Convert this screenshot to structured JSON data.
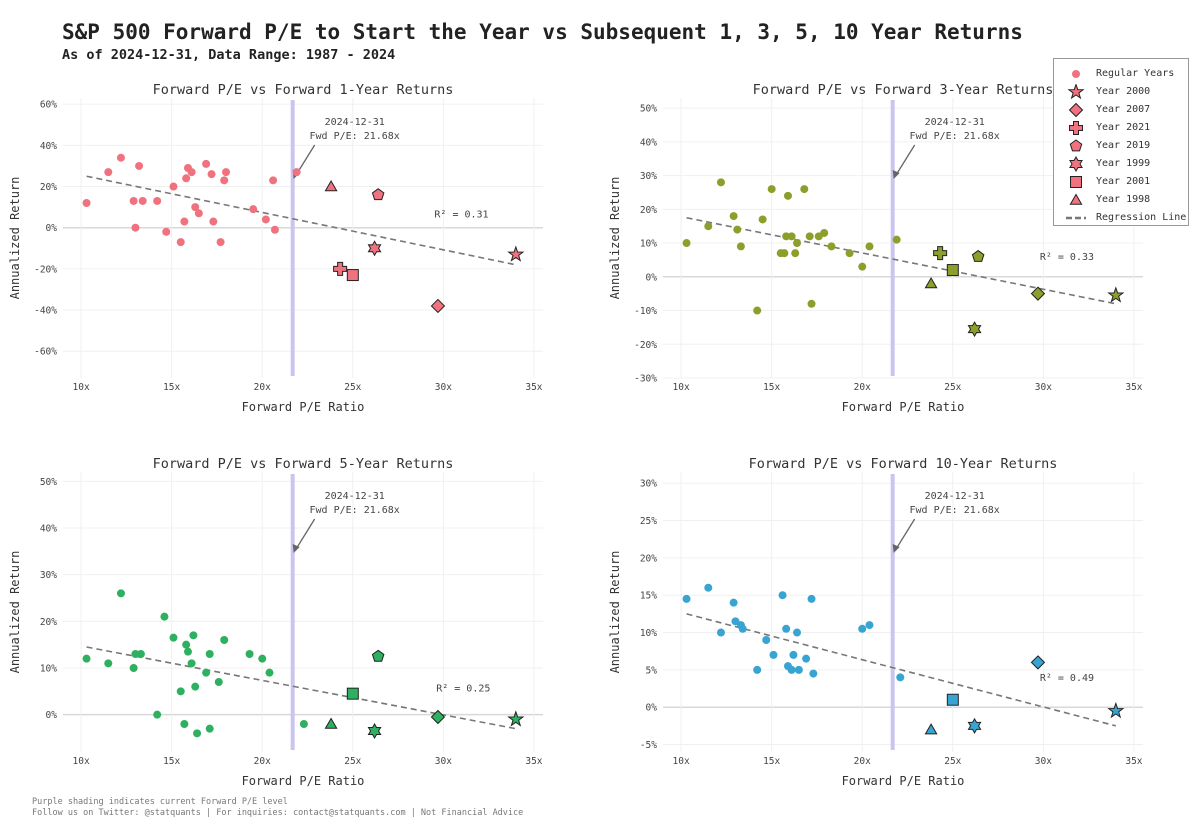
{
  "title": "S&P 500 Forward P/E to Start the Year vs Subsequent 1, 3, 5, 10 Year Returns",
  "subtitle": "As of 2024-12-31, Data Range: 1987 - 2024",
  "footer": {
    "line1": "Purple shading indicates current Forward P/E level",
    "line2": "Follow us on Twitter: @statquants | For inquiries: contact@statquants.com | Not Financial Advice"
  },
  "colors": {
    "regression": "#777777",
    "current_pe_line": "#c9c6ee",
    "zero_line": "#d8d8d8",
    "grid": "#f0f0f0"
  },
  "legend": {
    "items": [
      {
        "label": "Regular Years",
        "marker": "circle"
      },
      {
        "label": "Year 2000",
        "marker": "star"
      },
      {
        "label": "Year 2007",
        "marker": "diamond"
      },
      {
        "label": "Year 2021",
        "marker": "plus"
      },
      {
        "label": "Year 2019",
        "marker": "pentagon"
      },
      {
        "label": "Year 1999",
        "marker": "hexagram"
      },
      {
        "label": "Year 2001",
        "marker": "square"
      },
      {
        "label": "Year 1998",
        "marker": "triangle"
      },
      {
        "label": "Regression Line",
        "marker": "dash"
      }
    ]
  },
  "chart_data": [
    {
      "type": "scatter",
      "title": "Forward P/E vs Forward 1-Year Returns",
      "xlabel": "Forward P/E Ratio",
      "ylabel": "Annualized Return",
      "color": "#f0727f",
      "xlim": [
        9,
        35.5
      ],
      "ylim": [
        -73,
        63
      ],
      "xticks": [
        10,
        15,
        20,
        25,
        30,
        35
      ],
      "xtick_labels": [
        "10x",
        "15x",
        "20x",
        "25x",
        "30x",
        "35x"
      ],
      "yticks": [
        -60,
        -40,
        -20,
        0,
        20,
        40,
        60
      ],
      "ytick_labels": [
        "-60%",
        "-40%",
        "-20%",
        "0%",
        "20%",
        "40%",
        "60%"
      ],
      "current_pe": 21.68,
      "annotation": [
        "2024-12-31",
        "Fwd P/E: 21.68x"
      ],
      "r2_label": "R² = 0.31",
      "r2_at": [
        31,
        5
      ],
      "regression": {
        "x": [
          10.3,
          34
        ],
        "y": [
          25,
          -18
        ]
      },
      "regular_points": [
        [
          10.3,
          12
        ],
        [
          11.5,
          27
        ],
        [
          12.2,
          34
        ],
        [
          12.9,
          13
        ],
        [
          13,
          0
        ],
        [
          13.2,
          30
        ],
        [
          13.4,
          13
        ],
        [
          14.2,
          13
        ],
        [
          14.7,
          -2
        ],
        [
          15.1,
          20
        ],
        [
          15.5,
          -7
        ],
        [
          15.7,
          3
        ],
        [
          15.8,
          24
        ],
        [
          15.9,
          29
        ],
        [
          16.1,
          27
        ],
        [
          16.3,
          10
        ],
        [
          16.5,
          7
        ],
        [
          16.9,
          31
        ],
        [
          17.2,
          26
        ],
        [
          17.3,
          3
        ],
        [
          17.7,
          -7
        ],
        [
          17.9,
          23
        ],
        [
          18,
          27
        ],
        [
          19.5,
          9
        ],
        [
          20.2,
          4
        ],
        [
          20.6,
          23
        ],
        [
          20.7,
          -1
        ],
        [
          21.9,
          27
        ]
      ],
      "special_points": [
        {
          "year": "2000",
          "marker": "star",
          "x": 34,
          "y": -13
        },
        {
          "year": "2007",
          "marker": "diamond",
          "x": 29.7,
          "y": -38
        },
        {
          "year": "2021",
          "marker": "plus",
          "x": 24.3,
          "y": -20
        },
        {
          "year": "2019",
          "marker": "pentagon",
          "x": 26.4,
          "y": 16
        },
        {
          "year": "1999",
          "marker": "hexagram",
          "x": 26.2,
          "y": -10
        },
        {
          "year": "2001",
          "marker": "square",
          "x": 25,
          "y": -23
        },
        {
          "year": "1998",
          "marker": "triangle",
          "x": 23.8,
          "y": 20
        }
      ]
    },
    {
      "type": "scatter",
      "title": "Forward P/E vs Forward 3-Year Returns",
      "xlabel": "Forward P/E Ratio",
      "ylabel": "Annualized Return",
      "color": "#8e9e2b",
      "xlim": [
        9,
        35.5
      ],
      "ylim": [
        -30,
        53
      ],
      "xticks": [
        10,
        15,
        20,
        25,
        30,
        35
      ],
      "xtick_labels": [
        "10x",
        "15x",
        "20x",
        "25x",
        "30x",
        "35x"
      ],
      "yticks": [
        -30,
        -20,
        -10,
        0,
        10,
        20,
        30,
        40,
        50
      ],
      "ytick_labels": [
        "-30%",
        "-20%",
        "-10%",
        "0%",
        "10%",
        "20%",
        "30%",
        "40%",
        "50%"
      ],
      "current_pe": 21.68,
      "annotation": [
        "2024-12-31",
        "Fwd P/E: 21.68x"
      ],
      "r2_label": "R² = 0.33",
      "r2_at": [
        31.3,
        5
      ],
      "regression": {
        "x": [
          10.3,
          34
        ],
        "y": [
          17.5,
          -8
        ]
      },
      "regular_points": [
        [
          10.3,
          10
        ],
        [
          11.5,
          15
        ],
        [
          12.2,
          28
        ],
        [
          12.9,
          18
        ],
        [
          13.1,
          14
        ],
        [
          13.3,
          9
        ],
        [
          14.2,
          -10
        ],
        [
          14.5,
          17
        ],
        [
          15,
          26
        ],
        [
          15.5,
          7
        ],
        [
          15.7,
          7
        ],
        [
          15.8,
          12
        ],
        [
          15.9,
          24
        ],
        [
          16.1,
          12
        ],
        [
          16.3,
          7
        ],
        [
          16.4,
          10
        ],
        [
          16.8,
          26
        ],
        [
          17.1,
          12
        ],
        [
          17.2,
          -8
        ],
        [
          17.6,
          12
        ],
        [
          17.9,
          13
        ],
        [
          18.3,
          9
        ],
        [
          19.3,
          7
        ],
        [
          20,
          3
        ],
        [
          20.4,
          9
        ],
        [
          21.9,
          11
        ]
      ],
      "special_points": [
        {
          "year": "2000",
          "marker": "star",
          "x": 34,
          "y": -5.5
        },
        {
          "year": "2007",
          "marker": "diamond",
          "x": 29.7,
          "y": -5
        },
        {
          "year": "2021",
          "marker": "plus",
          "x": 24.3,
          "y": 7
        },
        {
          "year": "2019",
          "marker": "pentagon",
          "x": 26.4,
          "y": 6
        },
        {
          "year": "1999",
          "marker": "hexagram",
          "x": 26.2,
          "y": -15.5
        },
        {
          "year": "2001",
          "marker": "square",
          "x": 25,
          "y": 2
        },
        {
          "year": "1998",
          "marker": "triangle",
          "x": 23.8,
          "y": -2
        }
      ]
    },
    {
      "type": "scatter",
      "title": "Forward P/E vs Forward 5-Year Returns",
      "xlabel": "Forward P/E Ratio",
      "ylabel": "Annualized Return",
      "color": "#2eb061",
      "xlim": [
        9,
        35.5
      ],
      "ylim": [
        -8,
        52
      ],
      "xticks": [
        10,
        15,
        20,
        25,
        30,
        35
      ],
      "xtick_labels": [
        "10x",
        "15x",
        "20x",
        "25x",
        "30x",
        "35x"
      ],
      "yticks": [
        0,
        10,
        20,
        30,
        40,
        50
      ],
      "ytick_labels": [
        "0%",
        "10%",
        "20%",
        "30%",
        "40%",
        "50%"
      ],
      "current_pe": 21.68,
      "annotation": [
        "2024-12-31",
        "Fwd P/E: 21.68x"
      ],
      "r2_label": "R² = 0.25",
      "r2_at": [
        31.1,
        5
      ],
      "regression": {
        "x": [
          10.3,
          34
        ],
        "y": [
          14.5,
          -3
        ]
      },
      "regular_points": [
        [
          10.3,
          12
        ],
        [
          11.5,
          11
        ],
        [
          12.2,
          26
        ],
        [
          12.9,
          10
        ],
        [
          13,
          13
        ],
        [
          13.3,
          13
        ],
        [
          14.2,
          0
        ],
        [
          14.6,
          21
        ],
        [
          15.1,
          16.5
        ],
        [
          15.5,
          5
        ],
        [
          15.7,
          -2
        ],
        [
          15.8,
          15
        ],
        [
          15.9,
          13.5
        ],
        [
          16.1,
          11
        ],
        [
          16.2,
          17
        ],
        [
          16.3,
          6
        ],
        [
          16.4,
          -4
        ],
        [
          16.9,
          9
        ],
        [
          17.1,
          -3
        ],
        [
          17.1,
          13
        ],
        [
          17.6,
          7
        ],
        [
          17.9,
          16
        ],
        [
          19.3,
          13
        ],
        [
          20,
          12
        ],
        [
          20.4,
          9
        ],
        [
          22.3,
          -2
        ]
      ],
      "special_points": [
        {
          "year": "2000",
          "marker": "star",
          "x": 34,
          "y": -1
        },
        {
          "year": "2007",
          "marker": "diamond",
          "x": 29.7,
          "y": -0.5
        },
        {
          "year": "2019",
          "marker": "pentagon",
          "x": 26.4,
          "y": 12.5
        },
        {
          "year": "1999",
          "marker": "hexagram",
          "x": 26.2,
          "y": -3.5
        },
        {
          "year": "2001",
          "marker": "square",
          "x": 25,
          "y": 4.5
        },
        {
          "year": "1998",
          "marker": "triangle",
          "x": 23.8,
          "y": -2
        }
      ]
    },
    {
      "type": "scatter",
      "title": "Forward P/E vs Forward 10-Year Returns",
      "xlabel": "Forward P/E Ratio",
      "ylabel": "Annualized Return",
      "color": "#38a4d1",
      "xlim": [
        9,
        35.5
      ],
      "ylim": [
        -6,
        31.5
      ],
      "xticks": [
        10,
        15,
        20,
        25,
        30,
        35
      ],
      "xtick_labels": [
        "10x",
        "15x",
        "20x",
        "25x",
        "30x",
        "35x"
      ],
      "yticks": [
        -5,
        0,
        5,
        10,
        15,
        20,
        25,
        30
      ],
      "ytick_labels": [
        "-5%",
        "0%",
        "5%",
        "10%",
        "15%",
        "20%",
        "25%",
        "30%"
      ],
      "current_pe": 21.68,
      "annotation": [
        "2024-12-31",
        "Fwd P/E: 21.68x"
      ],
      "r2_label": "R² = 0.49",
      "r2_at": [
        31.3,
        3.5
      ],
      "regression": {
        "x": [
          10.3,
          34
        ],
        "y": [
          12.5,
          -2.5
        ]
      },
      "regular_points": [
        [
          10.3,
          14.5
        ],
        [
          11.5,
          16
        ],
        [
          12.2,
          10
        ],
        [
          12.9,
          14
        ],
        [
          13,
          11.5
        ],
        [
          13.3,
          11
        ],
        [
          13.4,
          10.5
        ],
        [
          14.2,
          5
        ],
        [
          14.7,
          9
        ],
        [
          15.1,
          7
        ],
        [
          15.6,
          15
        ],
        [
          15.8,
          10.5
        ],
        [
          15.9,
          5.5
        ],
        [
          16.1,
          5
        ],
        [
          16.2,
          7
        ],
        [
          16.4,
          10
        ],
        [
          16.5,
          5
        ],
        [
          16.9,
          6.5
        ],
        [
          17.2,
          14.5
        ],
        [
          17.3,
          4.5
        ],
        [
          20,
          10.5
        ],
        [
          20.4,
          11
        ],
        [
          22.1,
          4
        ]
      ],
      "special_points": [
        {
          "year": "2000",
          "marker": "star",
          "x": 34,
          "y": -0.5
        },
        {
          "year": "2007",
          "marker": "diamond",
          "x": 29.7,
          "y": 6
        },
        {
          "year": "1999",
          "marker": "hexagram",
          "x": 26.2,
          "y": -2.5
        },
        {
          "year": "2001",
          "marker": "square",
          "x": 25,
          "y": 1
        },
        {
          "year": "1998",
          "marker": "triangle",
          "x": 23.8,
          "y": -3
        }
      ]
    }
  ]
}
